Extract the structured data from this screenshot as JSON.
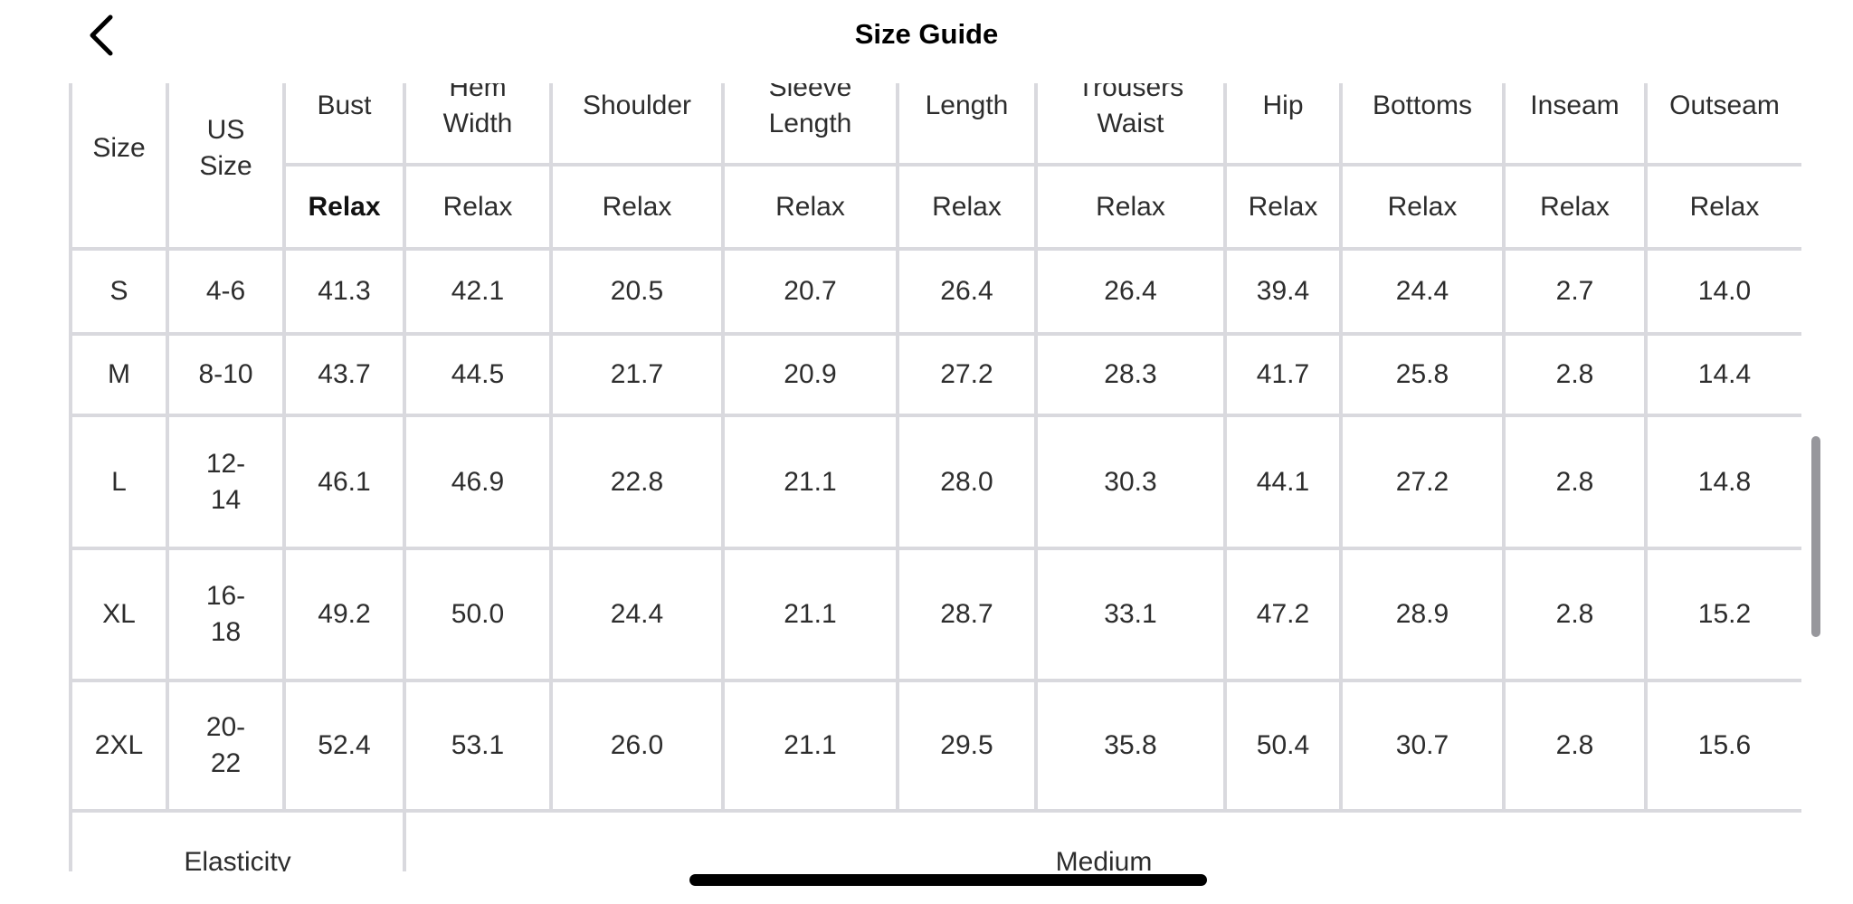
{
  "nav": {
    "title": "Size Guide",
    "back_icon": "chevron-left"
  },
  "table": {
    "corner_size_label": "Size",
    "corner_us_label": "US Size",
    "sub_header_label": "Relax",
    "columns": [
      {
        "label": "Bust",
        "sub": "Relax",
        "bold_sub": true
      },
      {
        "label": "Hem Width",
        "sub": "Relax",
        "bold_sub": false
      },
      {
        "label": "Shoulder",
        "sub": "Relax",
        "bold_sub": false
      },
      {
        "label": "Sleeve Length",
        "sub": "Relax",
        "bold_sub": false
      },
      {
        "label": "Length",
        "sub": "Relax",
        "bold_sub": false
      },
      {
        "label": "Trousers Waist",
        "sub": "Relax",
        "bold_sub": false
      },
      {
        "label": "Hip",
        "sub": "Relax",
        "bold_sub": false
      },
      {
        "label": "Bottoms",
        "sub": "Relax",
        "bold_sub": false
      },
      {
        "label": "Inseam",
        "sub": "Relax",
        "bold_sub": false
      },
      {
        "label": "Outseam",
        "sub": "Relax",
        "bold_sub": false
      }
    ],
    "rows": [
      {
        "size": "S",
        "us_size": "4-6",
        "values": [
          "41.3",
          "42.1",
          "20.5",
          "20.7",
          "26.4",
          "26.4",
          "39.4",
          "24.4",
          "2.7",
          "14.0"
        ]
      },
      {
        "size": "M",
        "us_size": "8-10",
        "values": [
          "43.7",
          "44.5",
          "21.7",
          "20.9",
          "27.2",
          "28.3",
          "41.7",
          "25.8",
          "2.8",
          "14.4"
        ]
      },
      {
        "size": "L",
        "us_size": "12-14",
        "values": [
          "46.1",
          "46.9",
          "22.8",
          "21.1",
          "28.0",
          "30.3",
          "44.1",
          "27.2",
          "2.8",
          "14.8"
        ]
      },
      {
        "size": "XL",
        "us_size": "16-18",
        "values": [
          "49.2",
          "50.0",
          "24.4",
          "21.1",
          "28.7",
          "33.1",
          "47.2",
          "28.9",
          "2.8",
          "15.2"
        ]
      },
      {
        "size": "2XL",
        "us_size": "20-22",
        "values": [
          "52.4",
          "53.1",
          "26.0",
          "21.1",
          "29.5",
          "35.8",
          "50.4",
          "30.7",
          "2.8",
          "15.6"
        ]
      }
    ],
    "footer": {
      "label": "Elasticity",
      "value": "Medium"
    }
  },
  "colors": {
    "us_size_cell_bg": "#333333",
    "header_cell_bg": "#f2f2f4",
    "grid_line": "#d9d9de",
    "scrollbar": "#97979c",
    "text": "#111111"
  }
}
